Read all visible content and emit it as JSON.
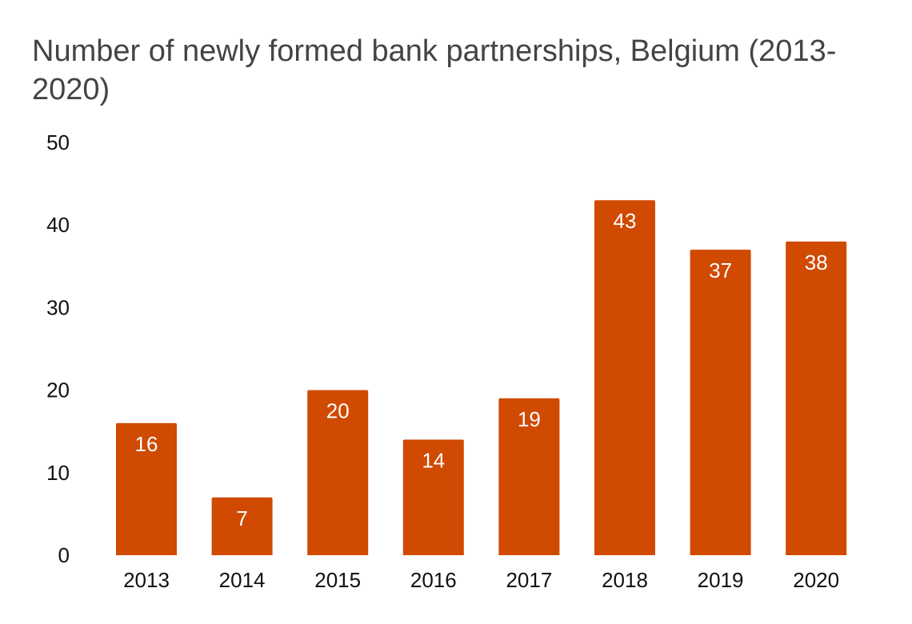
{
  "chart_data": {
    "type": "bar",
    "title": "Number of newly formed bank partnerships, Belgium (2013-2020)",
    "categories": [
      "2013",
      "2014",
      "2015",
      "2016",
      "2017",
      "2018",
      "2019",
      "2020"
    ],
    "values": [
      16,
      7,
      20,
      14,
      19,
      43,
      37,
      38
    ],
    "data_labels": [
      "16",
      "7",
      "20",
      "14",
      "19",
      "43",
      "37",
      "38"
    ],
    "y_ticks": [
      "0",
      "10",
      "20",
      "30",
      "40",
      "50"
    ],
    "ylim": [
      0,
      50
    ],
    "xlabel": "",
    "ylabel": "",
    "grid": false,
    "legend": "none",
    "bar_color": "#d04a02",
    "label_color": "#ffffff"
  }
}
